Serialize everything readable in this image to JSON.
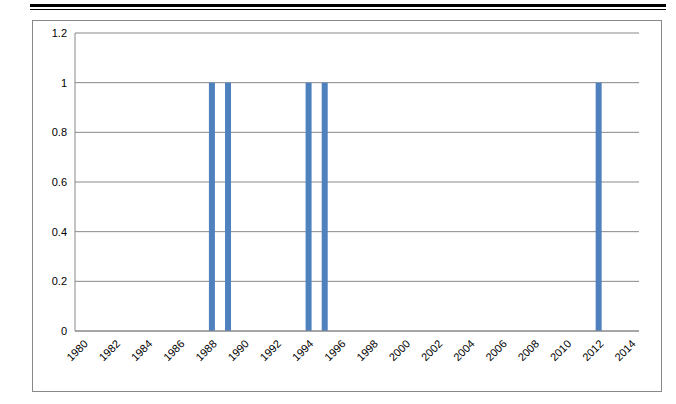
{
  "chart_data": {
    "type": "bar",
    "categories": [
      "1980",
      null,
      "1982",
      null,
      "1984",
      null,
      "1986",
      null,
      "1988",
      null,
      "1990",
      null,
      "1992",
      null,
      "1994",
      null,
      "1996",
      null,
      "1998",
      null,
      "2000",
      null,
      "2002",
      null,
      "2004",
      null,
      "2006",
      null,
      "2008",
      null,
      "2010",
      null,
      "2012",
      null,
      "2014"
    ],
    "values": [
      0,
      0,
      0,
      0,
      0,
      0,
      0,
      0,
      1,
      1,
      0,
      0,
      0,
      0,
      1,
      1,
      0,
      0,
      0,
      0,
      0,
      0,
      0,
      0,
      0,
      0,
      0,
      0,
      0,
      0,
      0,
      0,
      1,
      0,
      0
    ],
    "color": "#4f81bd",
    "ylim": [
      0,
      1.2
    ],
    "yticks": [
      0,
      0.2,
      0.4,
      0.6,
      0.8,
      1,
      1.2
    ],
    "grid": true
  }
}
